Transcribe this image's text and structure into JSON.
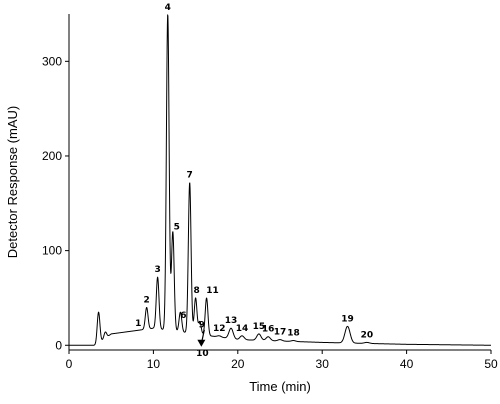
{
  "chart_data": {
    "type": "line",
    "title": "",
    "xlabel": "Time (min)",
    "ylabel": "Detector Response (mAU)",
    "xlim": [
      0,
      50
    ],
    "ylim": [
      -5,
      350
    ],
    "xticks": [
      0,
      10,
      20,
      30,
      40,
      50
    ],
    "yticks": [
      0,
      100,
      200,
      300
    ],
    "grid": false,
    "baseline": {
      "x": [
        0,
        3.2,
        5,
        10,
        20,
        30,
        40,
        50
      ],
      "y": [
        0,
        0,
        12,
        18,
        6,
        3,
        1,
        0
      ]
    },
    "series": [
      {
        "peaks": [
          {
            "label": "1",
            "x": 8.2,
            "y": 15
          },
          {
            "label": "2",
            "x": 9.2,
            "y": 40
          },
          {
            "label": "3",
            "x": 10.5,
            "y": 72
          },
          {
            "label": "4",
            "x": 11.7,
            "y": 350
          },
          {
            "label": "5",
            "x": 12.3,
            "y": 120
          },
          {
            "label": "6",
            "x": 13.2,
            "y": 35
          },
          {
            "label": "7",
            "x": 14.3,
            "y": 172
          },
          {
            "label": "8",
            "x": 15.0,
            "y": 50
          },
          {
            "label": "9",
            "x": 15.5,
            "y": 25
          },
          {
            "label": "10",
            "x": 15.8,
            "y": 10
          },
          {
            "label": "11",
            "x": 16.3,
            "y": 50
          },
          {
            "label": "12",
            "x": 17.8,
            "y": 10
          },
          {
            "label": "13",
            "x": 19.2,
            "y": 18
          },
          {
            "label": "14",
            "x": 20.5,
            "y": 10
          },
          {
            "label": "15",
            "x": 22.5,
            "y": 12
          },
          {
            "label": "16",
            "x": 23.6,
            "y": 9
          },
          {
            "label": "17",
            "x": 25.0,
            "y": 6
          },
          {
            "label": "18",
            "x": 26.6,
            "y": 5
          },
          {
            "label": "19",
            "x": 33.0,
            "y": 20
          },
          {
            "label": "20",
            "x": 35.3,
            "y": 3
          }
        ],
        "extra_peaks": [
          {
            "x": 3.5,
            "y": 35
          },
          {
            "x": 4.3,
            "y": 14
          },
          {
            "x": 5.2,
            "y": 12
          },
          {
            "x": 6.0,
            "y": 10
          },
          {
            "x": 7.2,
            "y": 10
          }
        ]
      }
    ]
  }
}
